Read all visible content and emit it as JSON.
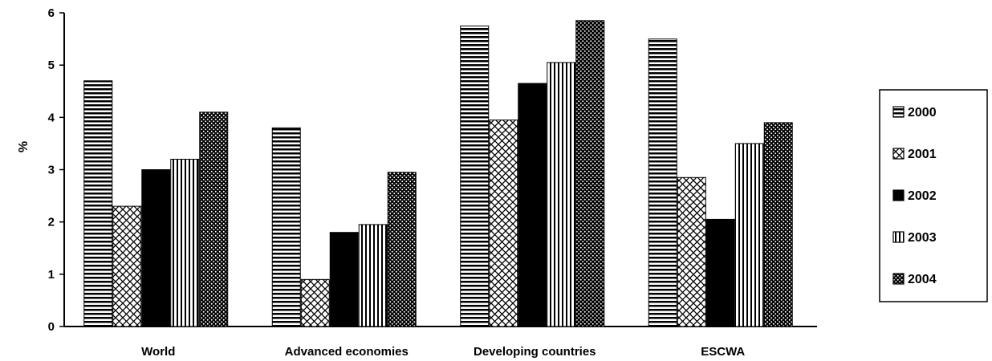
{
  "chart_data": {
    "type": "bar",
    "title": "",
    "xlabel": "",
    "ylabel": "%",
    "ylim": [
      0,
      6
    ],
    "yticks": [
      0,
      1,
      2,
      3,
      4,
      5,
      6
    ],
    "categories": [
      "World",
      "Advanced economies",
      "Developing countries",
      "ESCWA"
    ],
    "series": [
      {
        "name": "2000",
        "values": [
          4.7,
          3.8,
          5.75,
          5.5
        ],
        "pattern": "horizontal-stripes"
      },
      {
        "name": "2001",
        "values": [
          2.3,
          0.9,
          3.95,
          2.85
        ],
        "pattern": "crosshatch"
      },
      {
        "name": "2002",
        "values": [
          3.0,
          1.8,
          4.65,
          2.05
        ],
        "pattern": "solid-black"
      },
      {
        "name": "2003",
        "values": [
          3.2,
          1.95,
          5.05,
          3.5
        ],
        "pattern": "vertical-stripes"
      },
      {
        "name": "2004",
        "values": [
          4.1,
          2.95,
          5.85,
          3.9
        ],
        "pattern": "dense-dots"
      }
    ],
    "grid": false,
    "legend_position": "right",
    "colors": {
      "ink": "#000000",
      "background": "#ffffff"
    }
  }
}
